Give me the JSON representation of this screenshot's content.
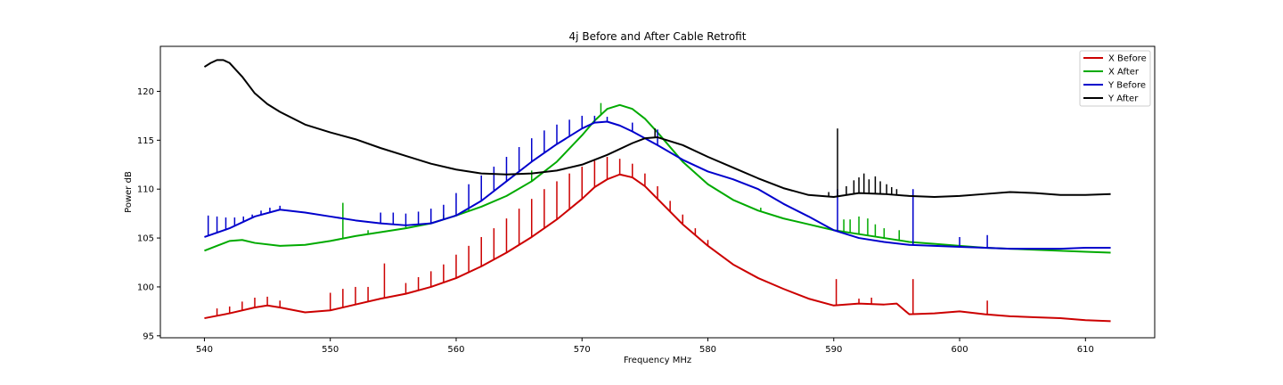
{
  "chart_data": {
    "type": "line",
    "title": "4j Before and After Cable Retrofit",
    "xlabel": "Frequency MHz",
    "ylabel": "Power dB",
    "xlim": [
      536.5,
      615.5
    ],
    "ylim": [
      94.8,
      124.6
    ],
    "xticks": [
      540,
      550,
      560,
      570,
      580,
      590,
      600,
      610
    ],
    "yticks": [
      95,
      100,
      105,
      110,
      115,
      120
    ],
    "grid": false,
    "legend_position": "top-right",
    "series": [
      {
        "name": "X Before",
        "color": "#cc0000",
        "points": [
          [
            540,
            96.8
          ],
          [
            542,
            97.3
          ],
          [
            544,
            97.9
          ],
          [
            545,
            98.1
          ],
          [
            546,
            97.9
          ],
          [
            548,
            97.4
          ],
          [
            550,
            97.6
          ],
          [
            552,
            98.2
          ],
          [
            554,
            98.8
          ],
          [
            556,
            99.3
          ],
          [
            558,
            100.0
          ],
          [
            560,
            100.9
          ],
          [
            562,
            102.1
          ],
          [
            564,
            103.5
          ],
          [
            566,
            105.1
          ],
          [
            568,
            106.9
          ],
          [
            570,
            109.0
          ],
          [
            571,
            110.2
          ],
          [
            572,
            111.0
          ],
          [
            573,
            111.5
          ],
          [
            574,
            111.2
          ],
          [
            575,
            110.3
          ],
          [
            576,
            109.0
          ],
          [
            578,
            106.4
          ],
          [
            580,
            104.2
          ],
          [
            582,
            102.3
          ],
          [
            584,
            100.9
          ],
          [
            586,
            99.8
          ],
          [
            588,
            98.8
          ],
          [
            590,
            98.1
          ],
          [
            592,
            98.3
          ],
          [
            594,
            98.2
          ],
          [
            595,
            98.3
          ],
          [
            596,
            97.2
          ],
          [
            598,
            97.3
          ],
          [
            600,
            97.5
          ],
          [
            602,
            97.2
          ],
          [
            604,
            97.0
          ],
          [
            606,
            96.9
          ],
          [
            608,
            96.8
          ],
          [
            610,
            96.6
          ],
          [
            612,
            96.5
          ]
        ],
        "spikes": [
          [
            541,
            97.8
          ],
          [
            542,
            98.0
          ],
          [
            543,
            98.5
          ],
          [
            544,
            98.9
          ],
          [
            545,
            99.0
          ],
          [
            546,
            98.6
          ],
          [
            550,
            99.4
          ],
          [
            551,
            99.8
          ],
          [
            552,
            100.0
          ],
          [
            553,
            100.0
          ],
          [
            554.3,
            102.4
          ],
          [
            556,
            100.4
          ],
          [
            557,
            101.0
          ],
          [
            558,
            101.6
          ],
          [
            559,
            102.3
          ],
          [
            560,
            103.3
          ],
          [
            561,
            104.2
          ],
          [
            562,
            105.1
          ],
          [
            563,
            106.0
          ],
          [
            564,
            107.0
          ],
          [
            565,
            108.0
          ],
          [
            566,
            109.0
          ],
          [
            567,
            110.0
          ],
          [
            568,
            110.8
          ],
          [
            569,
            111.6
          ],
          [
            570,
            112.3
          ],
          [
            571,
            112.9
          ],
          [
            572,
            113.3
          ],
          [
            573,
            113.1
          ],
          [
            574,
            112.6
          ],
          [
            575,
            111.6
          ],
          [
            576,
            110.3
          ],
          [
            577,
            108.8
          ],
          [
            578,
            107.4
          ],
          [
            579,
            106.0
          ],
          [
            580,
            104.8
          ],
          [
            590.2,
            100.8
          ],
          [
            592,
            98.8
          ],
          [
            593,
            98.9
          ],
          [
            596.3,
            100.8
          ],
          [
            602.2,
            98.6
          ]
        ]
      },
      {
        "name": "X After",
        "color": "#00aa00",
        "points": [
          [
            540,
            103.7
          ],
          [
            541,
            104.2
          ],
          [
            542,
            104.7
          ],
          [
            543,
            104.8
          ],
          [
            544,
            104.5
          ],
          [
            546,
            104.2
          ],
          [
            548,
            104.3
          ],
          [
            550,
            104.7
          ],
          [
            552,
            105.2
          ],
          [
            554,
            105.6
          ],
          [
            556,
            106.0
          ],
          [
            558,
            106.5
          ],
          [
            560,
            107.3
          ],
          [
            562,
            108.2
          ],
          [
            564,
            109.3
          ],
          [
            566,
            110.8
          ],
          [
            568,
            112.8
          ],
          [
            570,
            115.5
          ],
          [
            571,
            117.0
          ],
          [
            572,
            118.2
          ],
          [
            573,
            118.6
          ],
          [
            574,
            118.2
          ],
          [
            575,
            117.2
          ],
          [
            576,
            115.8
          ],
          [
            578,
            112.8
          ],
          [
            580,
            110.5
          ],
          [
            582,
            108.9
          ],
          [
            584,
            107.8
          ],
          [
            586,
            107.0
          ],
          [
            588,
            106.4
          ],
          [
            590,
            105.8
          ],
          [
            592,
            105.4
          ],
          [
            594,
            105.0
          ],
          [
            596,
            104.6
          ],
          [
            598,
            104.4
          ],
          [
            600,
            104.2
          ],
          [
            602,
            104.0
          ],
          [
            604,
            103.9
          ],
          [
            606,
            103.8
          ],
          [
            608,
            103.7
          ],
          [
            610,
            103.6
          ],
          [
            612,
            103.5
          ]
        ],
        "spikes": [
          [
            551,
            108.6
          ],
          [
            553,
            105.8
          ],
          [
            556,
            106.3
          ],
          [
            559,
            107.4
          ],
          [
            561,
            108.0
          ],
          [
            566,
            111.9
          ],
          [
            571.5,
            118.8
          ],
          [
            584.2,
            108.1
          ],
          [
            590.8,
            106.9
          ],
          [
            591.3,
            106.9
          ],
          [
            592,
            107.2
          ],
          [
            592.7,
            107.0
          ],
          [
            593.3,
            106.4
          ],
          [
            594,
            106.0
          ],
          [
            595.2,
            105.8
          ],
          [
            596.3,
            104.8
          ]
        ]
      },
      {
        "name": "Y Before",
        "color": "#0000cc",
        "points": [
          [
            540,
            105.1
          ],
          [
            542,
            106.0
          ],
          [
            544,
            107.2
          ],
          [
            546,
            107.9
          ],
          [
            548,
            107.6
          ],
          [
            550,
            107.2
          ],
          [
            552,
            106.8
          ],
          [
            554,
            106.5
          ],
          [
            556,
            106.3
          ],
          [
            558,
            106.5
          ],
          [
            560,
            107.3
          ],
          [
            562,
            108.8
          ],
          [
            564,
            110.8
          ],
          [
            566,
            112.8
          ],
          [
            568,
            114.6
          ],
          [
            570,
            116.2
          ],
          [
            571,
            116.8
          ],
          [
            572,
            116.9
          ],
          [
            573,
            116.5
          ],
          [
            574,
            115.9
          ],
          [
            576,
            114.5
          ],
          [
            578,
            113.0
          ],
          [
            580,
            111.8
          ],
          [
            582,
            111.0
          ],
          [
            584,
            110.0
          ],
          [
            586,
            108.5
          ],
          [
            588,
            107.2
          ],
          [
            590,
            105.8
          ],
          [
            592,
            105.0
          ],
          [
            594,
            104.6
          ],
          [
            596,
            104.3
          ],
          [
            598,
            104.2
          ],
          [
            600,
            104.1
          ],
          [
            602,
            104.0
          ],
          [
            604,
            103.9
          ],
          [
            606,
            103.9
          ],
          [
            608,
            103.9
          ],
          [
            610,
            104.0
          ],
          [
            612,
            104.0
          ]
        ],
        "spikes": [
          [
            540.3,
            107.3
          ],
          [
            541,
            107.2
          ],
          [
            541.7,
            107.1
          ],
          [
            542.4,
            107.1
          ],
          [
            543.1,
            107.2
          ],
          [
            543.8,
            107.4
          ],
          [
            544.5,
            107.8
          ],
          [
            545.2,
            108.1
          ],
          [
            546,
            108.3
          ],
          [
            554,
            107.6
          ],
          [
            555,
            107.6
          ],
          [
            556,
            107.5
          ],
          [
            557,
            107.7
          ],
          [
            558,
            108.0
          ],
          [
            559,
            108.4
          ],
          [
            560,
            109.6
          ],
          [
            561,
            110.5
          ],
          [
            562,
            111.4
          ],
          [
            563,
            112.3
          ],
          [
            564,
            113.3
          ],
          [
            565,
            114.3
          ],
          [
            566,
            115.2
          ],
          [
            567,
            116.0
          ],
          [
            568,
            116.6
          ],
          [
            569,
            117.1
          ],
          [
            570,
            117.5
          ],
          [
            571,
            117.5
          ],
          [
            572,
            117.4
          ],
          [
            574,
            116.8
          ],
          [
            576,
            116.1
          ],
          [
            590.3,
            110.0
          ],
          [
            596.3,
            110.0
          ],
          [
            600,
            105.1
          ],
          [
            602.2,
            105.3
          ]
        ]
      },
      {
        "name": "Y After",
        "color": "#000000",
        "points": [
          [
            540,
            122.5
          ],
          [
            540.5,
            122.9
          ],
          [
            541,
            123.2
          ],
          [
            541.5,
            123.2
          ],
          [
            542,
            122.9
          ],
          [
            543,
            121.5
          ],
          [
            544,
            119.8
          ],
          [
            545,
            118.7
          ],
          [
            546,
            117.9
          ],
          [
            548,
            116.6
          ],
          [
            550,
            115.8
          ],
          [
            552,
            115.1
          ],
          [
            554,
            114.2
          ],
          [
            556,
            113.4
          ],
          [
            558,
            112.6
          ],
          [
            560,
            112.0
          ],
          [
            562,
            111.6
          ],
          [
            564,
            111.5
          ],
          [
            566,
            111.6
          ],
          [
            568,
            111.9
          ],
          [
            570,
            112.5
          ],
          [
            572,
            113.5
          ],
          [
            574,
            114.7
          ],
          [
            575,
            115.2
          ],
          [
            576,
            115.3
          ],
          [
            578,
            114.5
          ],
          [
            580,
            113.3
          ],
          [
            582,
            112.2
          ],
          [
            584,
            111.1
          ],
          [
            586,
            110.1
          ],
          [
            588,
            109.4
          ],
          [
            590,
            109.2
          ],
          [
            592,
            109.6
          ],
          [
            594,
            109.5
          ],
          [
            596,
            109.3
          ],
          [
            598,
            109.2
          ],
          [
            600,
            109.3
          ],
          [
            602,
            109.5
          ],
          [
            604,
            109.7
          ],
          [
            606,
            109.6
          ],
          [
            608,
            109.4
          ],
          [
            610,
            109.4
          ],
          [
            612,
            109.5
          ]
        ],
        "spikes": [
          [
            575.8,
            116.2
          ],
          [
            589.6,
            109.7
          ],
          [
            590.3,
            116.2
          ],
          [
            591,
            110.3
          ],
          [
            591.6,
            110.9
          ],
          [
            592,
            111.2
          ],
          [
            592.4,
            111.6
          ],
          [
            592.8,
            111.0
          ],
          [
            593.3,
            111.3
          ],
          [
            593.7,
            110.8
          ],
          [
            594.2,
            110.5
          ],
          [
            594.6,
            110.2
          ],
          [
            595,
            110.0
          ]
        ]
      }
    ]
  }
}
